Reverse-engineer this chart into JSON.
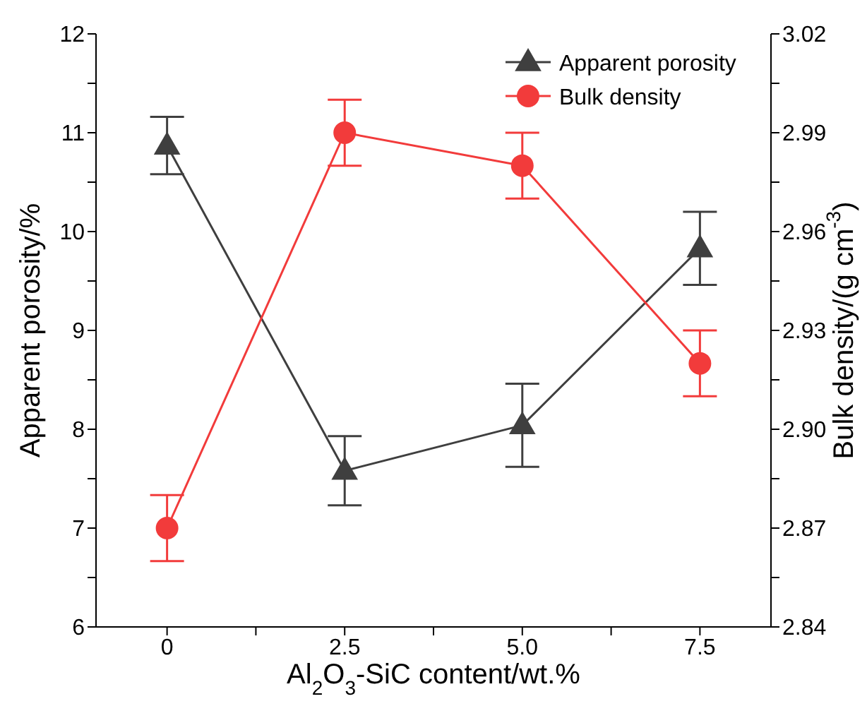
{
  "chart_data": {
    "type": "line",
    "xlabel": "Al$_{2}$O$_{3}$-SiC content/wt.%",
    "ylabel": "Apparent porosity/%",
    "y2label": "Bulk density/(g cm$^{-3}$)",
    "x": [
      0,
      2.5,
      5,
      7.5
    ],
    "xlim": [
      -1,
      8.5
    ],
    "xticks": [
      0,
      {
        "value": 1.25,
        "label": null
      },
      2.5,
      {
        "value": 3.75,
        "label": null
      },
      {
        "value": 5,
        "label": "5.0"
      },
      {
        "value": 6.25,
        "label": null
      },
      7.5
    ],
    "ylim": [
      6,
      12
    ],
    "yticks": [
      6,
      {
        "value": 6.5,
        "label": null
      },
      7,
      {
        "value": 7.5,
        "label": null
      },
      8,
      {
        "value": 8.5,
        "label": null
      },
      9,
      {
        "value": 9.5,
        "label": null
      },
      10,
      {
        "value": 10.5,
        "label": null
      },
      11,
      {
        "value": 11.5,
        "label": null
      },
      12
    ],
    "y2lim": [
      2.84,
      3.02
    ],
    "y2ticks": [
      2.84,
      {
        "value": 2.855,
        "label": null
      },
      2.87,
      {
        "value": 2.885,
        "label": null
      },
      {
        "value": 2.9,
        "label": "2.90"
      },
      {
        "value": 2.915,
        "label": null
      },
      2.93,
      {
        "value": 2.945,
        "label": null
      },
      2.96,
      {
        "value": 2.975,
        "label": null
      },
      2.99,
      {
        "value": 3.005,
        "label": null
      },
      3.02
    ],
    "legend": "top right",
    "series": [
      {
        "name": "Apparent porosity",
        "color": "#3f3f3f",
        "marker": "triangle",
        "axis": "y",
        "values": [
          10.87,
          7.58,
          8.04,
          9.83
        ],
        "errors": [
          0.29,
          0.35,
          0.42,
          0.37
        ]
      },
      {
        "name": "Bulk density",
        "color": "#f23b3b",
        "marker": "circle",
        "axis": "y2",
        "values": [
          2.87,
          2.99,
          2.98,
          2.92
        ],
        "errors": [
          0.01,
          0.01,
          0.01,
          0.01
        ]
      }
    ]
  }
}
